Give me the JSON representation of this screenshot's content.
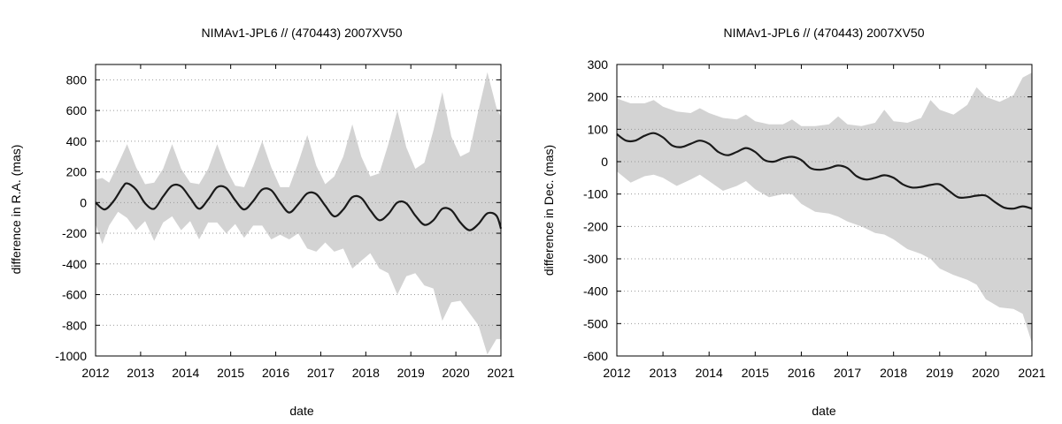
{
  "chart_data": [
    {
      "type": "line",
      "title": "NIMAv1-JPL6 // (470443) 2007XV50",
      "xlabel": "date",
      "ylabel": "difference in R.A. (mas)",
      "xlim": [
        2012,
        2021
      ],
      "ylim": [
        -1000,
        900
      ],
      "xticks": [
        2012,
        2013,
        2014,
        2015,
        2016,
        2017,
        2018,
        2019,
        2020,
        2021
      ],
      "yticks": [
        -1000,
        -800,
        -600,
        -400,
        -200,
        0,
        200,
        400,
        600,
        800
      ],
      "grid": "horizontal dotted",
      "colors": {
        "band": "#d3d3d3",
        "line": "#1a1a1a"
      },
      "series": [
        {
          "kind": "line",
          "x": [
            2012.0,
            2012.2,
            2012.4,
            2012.6,
            2012.7,
            2012.9,
            2013.1,
            2013.3,
            2013.5,
            2013.7,
            2013.9,
            2014.1,
            2014.3,
            2014.5,
            2014.7,
            2014.9,
            2015.1,
            2015.3,
            2015.5,
            2015.7,
            2015.9,
            2016.1,
            2016.3,
            2016.5,
            2016.7,
            2016.9,
            2017.1,
            2017.3,
            2017.5,
            2017.7,
            2017.9,
            2018.1,
            2018.3,
            2018.5,
            2018.7,
            2018.9,
            2019.1,
            2019.3,
            2019.5,
            2019.7,
            2019.9,
            2020.1,
            2020.3,
            2020.5,
            2020.7,
            2020.9,
            2021.0
          ],
          "y": [
            0,
            -45,
            10,
            100,
            125,
            85,
            -5,
            -40,
            40,
            110,
            105,
            30,
            -40,
            20,
            100,
            95,
            15,
            -45,
            10,
            85,
            80,
            0,
            -65,
            -10,
            60,
            55,
            -20,
            -90,
            -45,
            35,
            30,
            -50,
            -115,
            -75,
            0,
            -5,
            -85,
            -145,
            -115,
            -40,
            -50,
            -130,
            -180,
            -140,
            -70,
            -85,
            -170
          ]
        },
        {
          "kind": "band",
          "x": [
            2012.0,
            2012.15,
            2012.3,
            2012.5,
            2012.7,
            2012.9,
            2013.1,
            2013.3,
            2013.5,
            2013.7,
            2013.9,
            2014.1,
            2014.3,
            2014.5,
            2014.7,
            2014.9,
            2015.1,
            2015.3,
            2015.5,
            2015.7,
            2015.9,
            2016.1,
            2016.3,
            2016.5,
            2016.7,
            2016.9,
            2017.1,
            2017.3,
            2017.5,
            2017.7,
            2017.9,
            2018.1,
            2018.3,
            2018.5,
            2018.7,
            2018.9,
            2019.1,
            2019.3,
            2019.5,
            2019.7,
            2019.9,
            2020.1,
            2020.3,
            2020.5,
            2020.7,
            2020.9,
            2021.0
          ],
          "upper": [
            150,
            160,
            130,
            250,
            380,
            230,
            120,
            130,
            220,
            380,
            220,
            130,
            120,
            220,
            380,
            220,
            110,
            100,
            240,
            400,
            230,
            100,
            100,
            260,
            440,
            240,
            120,
            170,
            300,
            510,
            300,
            170,
            190,
            380,
            600,
            360,
            220,
            260,
            470,
            720,
            430,
            300,
            330,
            600,
            850,
            620,
            560
          ],
          "lower": [
            -140,
            -270,
            -150,
            -60,
            -100,
            -180,
            -120,
            -250,
            -130,
            -90,
            -180,
            -120,
            -240,
            -130,
            -130,
            -200,
            -140,
            -230,
            -150,
            -150,
            -240,
            -210,
            -240,
            -200,
            -300,
            -320,
            -260,
            -320,
            -300,
            -430,
            -380,
            -330,
            -430,
            -460,
            -600,
            -480,
            -460,
            -540,
            -560,
            -770,
            -650,
            -640,
            -720,
            -800,
            -990,
            -890,
            -890
          ]
        }
      ]
    },
    {
      "type": "line",
      "title": "NIMAv1-JPL6 // (470443) 2007XV50",
      "xlabel": "date",
      "ylabel": "difference in Dec. (mas)",
      "xlim": [
        2012,
        2021
      ],
      "ylim": [
        -600,
        300
      ],
      "xticks": [
        2012,
        2013,
        2014,
        2015,
        2016,
        2017,
        2018,
        2019,
        2020,
        2021
      ],
      "yticks": [
        -600,
        -500,
        -400,
        -300,
        -200,
        -100,
        0,
        100,
        200,
        300
      ],
      "grid": "horizontal dotted",
      "colors": {
        "band": "#d3d3d3",
        "line": "#1a1a1a"
      },
      "series": [
        {
          "kind": "line",
          "x": [
            2012.0,
            2012.2,
            2012.4,
            2012.6,
            2012.8,
            2013.0,
            2013.2,
            2013.4,
            2013.6,
            2013.8,
            2014.0,
            2014.2,
            2014.4,
            2014.6,
            2014.8,
            2015.0,
            2015.2,
            2015.4,
            2015.6,
            2015.8,
            2016.0,
            2016.2,
            2016.4,
            2016.6,
            2016.8,
            2017.0,
            2017.2,
            2017.4,
            2017.6,
            2017.8,
            2018.0,
            2018.2,
            2018.4,
            2018.6,
            2018.8,
            2019.0,
            2019.2,
            2019.4,
            2019.6,
            2019.8,
            2020.0,
            2020.2,
            2020.4,
            2020.6,
            2020.8,
            2021.0
          ],
          "y": [
            85,
            65,
            65,
            80,
            88,
            75,
            50,
            45,
            55,
            65,
            55,
            30,
            20,
            30,
            42,
            30,
            5,
            0,
            10,
            15,
            5,
            -20,
            -25,
            -20,
            -12,
            -20,
            -45,
            -55,
            -50,
            -42,
            -50,
            -70,
            -80,
            -78,
            -72,
            -70,
            -90,
            -110,
            -110,
            -105,
            -105,
            -125,
            -142,
            -145,
            -138,
            -145
          ]
        },
        {
          "kind": "band",
          "x": [
            2012.0,
            2012.3,
            2012.6,
            2012.8,
            2013.0,
            2013.3,
            2013.6,
            2013.8,
            2014.0,
            2014.3,
            2014.6,
            2014.8,
            2015.0,
            2015.3,
            2015.6,
            2015.8,
            2016.0,
            2016.3,
            2016.6,
            2016.8,
            2017.0,
            2017.3,
            2017.6,
            2017.8,
            2018.0,
            2018.3,
            2018.6,
            2018.8,
            2019.0,
            2019.3,
            2019.6,
            2019.8,
            2020.0,
            2020.3,
            2020.6,
            2020.8,
            2021.0
          ],
          "upper": [
            195,
            180,
            180,
            190,
            170,
            155,
            150,
            165,
            150,
            135,
            130,
            145,
            125,
            115,
            115,
            130,
            110,
            110,
            115,
            140,
            115,
            110,
            120,
            160,
            125,
            120,
            135,
            190,
            160,
            145,
            175,
            230,
            200,
            185,
            205,
            260,
            275
          ],
          "lower": [
            -30,
            -65,
            -45,
            -40,
            -50,
            -75,
            -55,
            -40,
            -60,
            -90,
            -75,
            -60,
            -85,
            -110,
            -100,
            -100,
            -130,
            -155,
            -160,
            -170,
            -185,
            -200,
            -220,
            -225,
            -240,
            -270,
            -285,
            -300,
            -330,
            -350,
            -365,
            -380,
            -425,
            -450,
            -455,
            -470,
            -560
          ]
        }
      ]
    }
  ]
}
